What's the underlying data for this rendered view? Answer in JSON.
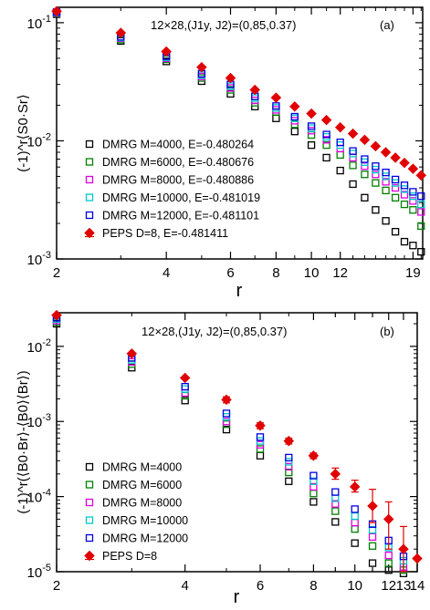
{
  "chart_data": [
    {
      "type": "scatter",
      "panel_label": "(a)",
      "annotation": "12×28,(J1y, J2)=(0,85,0.37)",
      "ylabel": "(-1)^r⟨S0·Sr⟩",
      "xlabel": "r",
      "xscale": "log",
      "yscale": "log",
      "xlim": [
        2,
        20.2
      ],
      "ylim": [
        0.001,
        0.135
      ],
      "xticks": [
        2,
        4,
        6,
        8,
        10,
        12,
        19
      ],
      "xtick_labels": [
        "2",
        "4",
        "6",
        "8",
        "10",
        "12",
        "19"
      ],
      "yticks": [
        0.001,
        0.01,
        0.1
      ],
      "ytick_labels": [
        "10^-3",
        "10^-2",
        "10^-1"
      ],
      "legend_position": "lower-left",
      "series": [
        {
          "name": "DMRG M=4000, E=-0.480264",
          "color": "#000000",
          "marker": "open-square",
          "x": [
            2,
            3,
            4,
            5,
            6,
            7,
            8,
            9,
            10,
            11,
            12,
            13,
            14,
            15,
            16,
            17,
            18,
            19,
            20
          ],
          "y": [
            0.118,
            0.07,
            0.047,
            0.032,
            0.025,
            0.0195,
            0.0155,
            0.012,
            0.0092,
            0.0072,
            0.0056,
            0.0043,
            0.0033,
            0.0026,
            0.0021,
            0.0017,
            0.0014,
            0.0013,
            0.00115
          ]
        },
        {
          "name": "DMRG M=6000, E=-0.480676",
          "color": "#008000",
          "marker": "open-square",
          "x": [
            2,
            3,
            4,
            5,
            6,
            7,
            8,
            9,
            10,
            11,
            12,
            13,
            14,
            15,
            16,
            17,
            18,
            19,
            20
          ],
          "y": [
            0.12,
            0.072,
            0.049,
            0.034,
            0.027,
            0.021,
            0.0175,
            0.0138,
            0.0112,
            0.0092,
            0.0076,
            0.0062,
            0.0052,
            0.0044,
            0.0038,
            0.0033,
            0.0029,
            0.0026,
            0.0019
          ]
        },
        {
          "name": "DMRG M=8000, E=-0.480886",
          "color": "#e000e0",
          "marker": "open-square",
          "x": [
            2,
            3,
            4,
            5,
            6,
            7,
            8,
            9,
            10,
            11,
            12,
            13,
            14,
            15,
            16,
            17,
            18,
            19,
            20
          ],
          "y": [
            0.121,
            0.074,
            0.05,
            0.035,
            0.028,
            0.022,
            0.0183,
            0.0148,
            0.0122,
            0.0102,
            0.0086,
            0.0072,
            0.0061,
            0.0052,
            0.0045,
            0.004,
            0.0035,
            0.0031,
            0.0025
          ]
        },
        {
          "name": "DMRG M=10000, E=-0.481019",
          "color": "#00c8c8",
          "marker": "open-square",
          "x": [
            2,
            3,
            4,
            5,
            6,
            7,
            8,
            9,
            10,
            11,
            12,
            13,
            14,
            15,
            16,
            17,
            18,
            19,
            20
          ],
          "y": [
            0.122,
            0.075,
            0.051,
            0.036,
            0.029,
            0.023,
            0.019,
            0.0155,
            0.0128,
            0.0108,
            0.0092,
            0.0078,
            0.0066,
            0.0057,
            0.005,
            0.0044,
            0.0039,
            0.0034,
            0.0029
          ]
        },
        {
          "name": "DMRG M=12000, E=-0.481101",
          "color": "#0000e0",
          "marker": "open-square",
          "x": [
            2,
            3,
            4,
            5,
            6,
            7,
            8,
            9,
            10,
            11,
            12,
            13,
            14,
            15,
            16,
            17,
            18,
            19,
            20
          ],
          "y": [
            0.123,
            0.076,
            0.052,
            0.037,
            0.03,
            0.0238,
            0.0197,
            0.016,
            0.0133,
            0.0113,
            0.0097,
            0.0082,
            0.007,
            0.0061,
            0.0054,
            0.0047,
            0.0042,
            0.0037,
            0.0034
          ]
        },
        {
          "name": "PEPS D=8,        E=-0.481411",
          "color": "#e00000",
          "marker": "filled-diamond",
          "x": [
            2,
            3,
            4,
            5,
            6,
            7,
            8,
            9,
            10,
            11,
            12,
            13,
            14,
            15,
            16,
            17,
            18,
            19,
            20
          ],
          "y": [
            0.125,
            0.082,
            0.057,
            0.042,
            0.034,
            0.027,
            0.0232,
            0.0195,
            0.017,
            0.015,
            0.013,
            0.0115,
            0.0102,
            0.009,
            0.008,
            0.0072,
            0.0065,
            0.0058,
            0.0051
          ]
        }
      ]
    },
    {
      "type": "scatter",
      "panel_label": "(b)",
      "annotation": "12×28,(J1y, J2)=(0,85,0.37)",
      "ylabel": "(-1)^r(⟨B0·Br⟩-⟨B0⟩⟨Br⟩)",
      "xlabel": "r",
      "xscale": "log",
      "yscale": "log",
      "xlim": [
        2,
        14
      ],
      "ylim": [
        1e-05,
        0.028
      ],
      "xticks": [
        2,
        4,
        6,
        8,
        9,
        10,
        11,
        12,
        13,
        14
      ],
      "xtick_labels": [
        "2",
        "4",
        "6",
        "8",
        "",
        "10",
        "",
        "12",
        "13",
        "14"
      ],
      "yticks": [
        1e-05,
        0.0001,
        0.001,
        0.01
      ],
      "ytick_labels": [
        "10^-5",
        "10^-4",
        "10^-3",
        "10^-2"
      ],
      "legend_position": "lower-left",
      "series": [
        {
          "name": "DMRG M=4000",
          "color": "#000000",
          "marker": "open-square",
          "x": [
            2,
            3,
            4,
            5,
            6,
            7,
            8,
            9,
            10,
            11,
            12,
            13
          ],
          "y": [
            0.02,
            0.0052,
            0.0019,
            0.00078,
            0.00035,
            0.00016,
            8.5e-05,
            4.6e-05,
            2.4e-05,
            1.3e-05,
            1.05e-05,
            9.5e-06
          ]
        },
        {
          "name": "DMRG M=6000",
          "color": "#008000",
          "marker": "open-square",
          "x": [
            2,
            3,
            4,
            5,
            6,
            7,
            8,
            9,
            10,
            11,
            12,
            13
          ],
          "y": [
            0.021,
            0.0058,
            0.0022,
            0.00092,
            0.00043,
            0.00021,
            0.00011,
            6.4e-05,
            3.7e-05,
            2.2e-05,
            1.3e-05,
            1.05e-05
          ]
        },
        {
          "name": "DMRG M=8000",
          "color": "#e000e0",
          "marker": "open-square",
          "x": [
            2,
            3,
            4,
            5,
            6,
            7,
            8,
            9,
            10,
            11,
            12,
            13
          ],
          "y": [
            0.022,
            0.0062,
            0.0024,
            0.001,
            0.00049,
            0.00025,
            0.000135,
            8e-05,
            4.5e-05,
            2.9e-05,
            1.65e-05,
            1.15e-05
          ]
        },
        {
          "name": "DMRG M=10000",
          "color": "#00c8c8",
          "marker": "open-square",
          "x": [
            2,
            3,
            4,
            5,
            6,
            7,
            8,
            9,
            10,
            11,
            12,
            13
          ],
          "y": [
            0.023,
            0.0066,
            0.0027,
            0.00115,
            0.00055,
            0.00029,
            0.00016,
            9.5e-05,
            5.5e-05,
            3.6e-05,
            2.1e-05,
            1.4e-05
          ]
        },
        {
          "name": "DMRG M=12000",
          "color": "#0000e0",
          "marker": "open-square",
          "x": [
            2,
            3,
            4,
            5,
            6,
            7,
            8,
            9,
            10,
            11,
            12,
            13
          ],
          "y": [
            0.024,
            0.007,
            0.0029,
            0.00128,
            0.00062,
            0.00033,
            0.00019,
            0.000115,
            6.8e-05,
            4.3e-05,
            2.6e-05,
            1.6e-05
          ]
        },
        {
          "name": "PEPS D=8",
          "color": "#e00000",
          "marker": "filled-diamond",
          "x": [
            2,
            3,
            4,
            5,
            6,
            7,
            8,
            9,
            10,
            11,
            12,
            13,
            14
          ],
          "y": [
            0.026,
            0.008,
            0.0038,
            0.00195,
            0.00088,
            0.00055,
            0.00035,
            0.0002,
            0.000135,
            7.5e-05,
            5e-05,
            2e-05,
            1.5e-05
          ],
          "yerr_low": [
            0,
            0,
            0,
            0.00018,
            8e-05,
            5e-05,
            3e-05,
            3e-05,
            2e-05,
            3e-05,
            3e-05,
            1e-05,
            0
          ],
          "yerr_high": [
            0,
            0,
            0,
            0.00018,
            8e-05,
            5e-05,
            3e-05,
            4e-05,
            3e-05,
            5e-05,
            3.5e-05,
            2e-05,
            0
          ]
        }
      ]
    }
  ]
}
